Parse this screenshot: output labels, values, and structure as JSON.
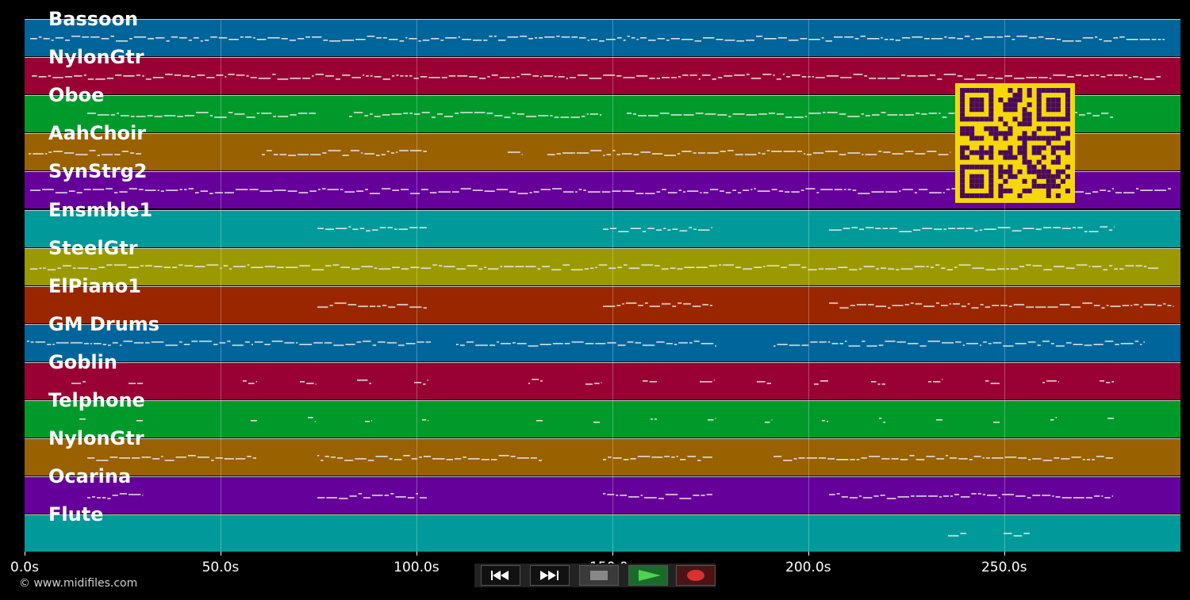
{
  "tracks": [
    {
      "name": "Bassoon",
      "color": "#00659a"
    },
    {
      "name": "NylonGtr",
      "color": "#990033"
    },
    {
      "name": "Oboe",
      "color": "#009a2b"
    },
    {
      "name": "AahChoir",
      "color": "#996100"
    },
    {
      "name": "SynStrg2",
      "color": "#66009a"
    },
    {
      "name": "Ensmble1",
      "color": "#009a9a"
    },
    {
      "name": "SteelGtr",
      "color": "#9a9a00"
    },
    {
      "name": "ElPiano1",
      "color": "#9a2600"
    },
    {
      "name": "GM Drums",
      "color": "#00659a"
    },
    {
      "name": "Goblin",
      "color": "#990033"
    },
    {
      "name": "Telphone",
      "color": "#009a2b"
    },
    {
      "name": "NylonGtr",
      "color": "#996100"
    },
    {
      "name": "Ocarina",
      "color": "#66009a"
    },
    {
      "name": "Flute",
      "color": "#009a9a"
    }
  ],
  "timeline": {
    "ticks": [
      "0.0s",
      "50.0s",
      "100.0s",
      "150.0s",
      "200.0s",
      "250.0s"
    ],
    "tick_values": [
      0,
      50,
      100,
      150,
      200,
      250
    ],
    "max_seconds": 295
  },
  "transport": {
    "buttons": [
      {
        "label": "rewind",
        "icon": "rewind-icon"
      },
      {
        "label": "fast-forward",
        "icon": "fast-forward-icon"
      },
      {
        "label": "stop",
        "icon": "stop-icon"
      },
      {
        "label": "play",
        "icon": "play-icon"
      },
      {
        "label": "record",
        "icon": "record-icon"
      }
    ]
  },
  "copyright": "© www.midifiles.com",
  "qr_color": "#f5d70a",
  "qr_dark": "#4a0a5a"
}
